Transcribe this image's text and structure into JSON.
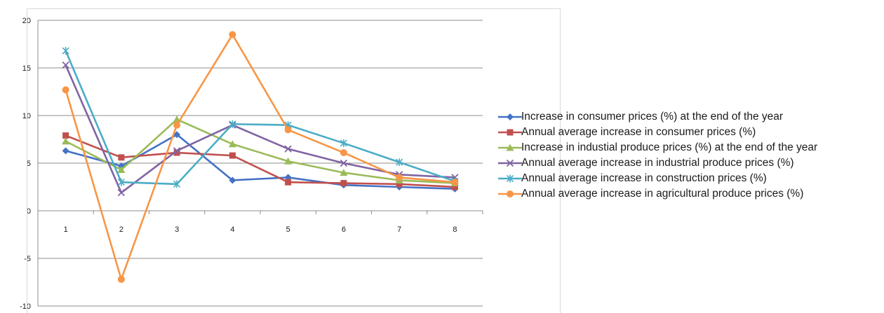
{
  "chart_data": {
    "type": "line",
    "title": "",
    "xlabel": "",
    "ylabel": "",
    "x": [
      "1",
      "2",
      "3",
      "4",
      "5",
      "6",
      "7",
      "8"
    ],
    "ylim": [
      -10,
      20
    ],
    "yticks": [
      "20",
      "15",
      "10",
      "5",
      "0",
      "-5",
      "-10"
    ],
    "grid": "horizontal",
    "legend": "right",
    "series": [
      {
        "name": "Increase in consumer prices (%) at the end of the year",
        "color": "#4472C4",
        "marker": "diamond",
        "values": [
          6.3,
          4.7,
          8.0,
          3.2,
          3.5,
          2.7,
          2.5,
          2.3
        ]
      },
      {
        "name": "Annual average increase in consumer prices (%)",
        "color": "#C0504D",
        "marker": "square",
        "values": [
          7.9,
          5.6,
          6.1,
          5.8,
          3.0,
          2.9,
          2.8,
          2.5
        ]
      },
      {
        "name": "Increase in industial produce prices (%) at the end of the year",
        "color": "#9BBB59",
        "marker": "triangle",
        "values": [
          7.3,
          4.3,
          9.6,
          7.0,
          5.2,
          4.0,
          3.2,
          2.9
        ]
      },
      {
        "name": "Annual average increase in industrial produce prices (%)",
        "color": "#8064A2",
        "marker": "x",
        "values": [
          15.3,
          1.9,
          6.3,
          9.0,
          6.5,
          5.0,
          3.8,
          3.5
        ]
      },
      {
        "name": "Annual average increase in construction prices (%)",
        "color": "#4BACC6",
        "marker": "star",
        "values": [
          16.8,
          3.0,
          2.8,
          9.1,
          9.0,
          7.1,
          5.1,
          3.1
        ]
      },
      {
        "name": "Annual average increase in agricultural produce prices (%)",
        "color": "#F79646",
        "marker": "circle",
        "values": [
          12.7,
          -7.2,
          9.0,
          18.5,
          8.5,
          6.1,
          3.5,
          3.0
        ]
      }
    ]
  }
}
